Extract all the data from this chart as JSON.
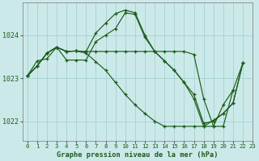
{
  "title": "Graphe pression niveau de la mer (hPa)",
  "bg_color": "#cce9e9",
  "grid_color": "#aad4d4",
  "line_color": "#1a5c1a",
  "xlim": [
    -0.5,
    23
  ],
  "ylim": [
    1021.55,
    1024.75
  ],
  "yticks": [
    1022,
    1023,
    1024
  ],
  "ytick_labels": [
    "1022",
    "1023",
    "1024"
  ],
  "series": [
    [
      1023.05,
      1023.28,
      1023.58,
      1023.72,
      1023.62,
      1023.63,
      1023.62,
      1024.05,
      1024.28,
      1024.5,
      1024.58,
      1024.52,
      1024.0,
      1023.62,
      1023.4,
      1023.18,
      1022.9,
      1022.62,
      1021.95,
      1022.0,
      1022.18,
      1022.42,
      1023.35,
      null
    ],
    [
      1023.05,
      1023.28,
      1023.58,
      1023.72,
      1023.62,
      1023.63,
      1023.62,
      1023.62,
      1023.62,
      1023.62,
      1023.62,
      1023.62,
      1023.62,
      1023.62,
      1023.62,
      1023.62,
      1023.62,
      1023.55,
      1022.52,
      1021.88,
      1021.88,
      1022.72,
      null,
      null
    ],
    [
      1023.05,
      1023.4,
      1023.45,
      1023.72,
      1023.42,
      1023.42,
      1023.42,
      1023.85,
      1024.0,
      1024.15,
      1024.52,
      1024.48,
      1023.95,
      1023.62,
      1023.4,
      1023.18,
      1022.9,
      1022.52,
      1021.88,
      1021.88,
      1022.38,
      1022.72,
      1023.35,
      null
    ],
    [
      1023.05,
      1023.28,
      1023.58,
      1023.72,
      1023.62,
      1023.63,
      1023.58,
      1023.38,
      1023.18,
      1022.9,
      1022.62,
      1022.38,
      1022.18,
      1022.0,
      1021.88,
      1021.88,
      1021.88,
      1021.88,
      1021.88,
      1022.02,
      1022.18,
      1022.42,
      1023.35,
      null
    ]
  ]
}
